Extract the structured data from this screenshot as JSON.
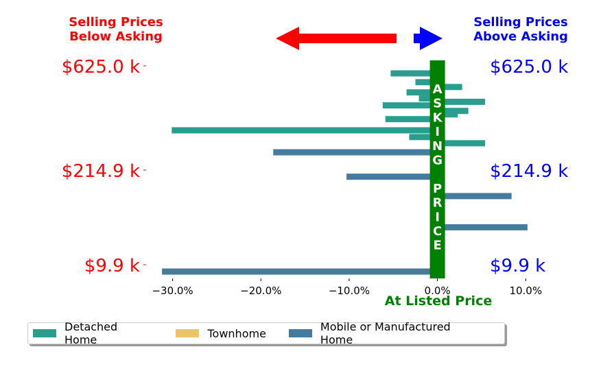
{
  "header": {
    "below_label": "Selling Prices\nBelow Asking",
    "above_label": "Selling Prices\nAbove Asking",
    "below_color": "#ff0000",
    "above_color": "#0000ff"
  },
  "center_band": {
    "letters": [
      "A",
      "S",
      "K",
      "I",
      "N",
      "G",
      "",
      "P",
      "R",
      "I",
      "C",
      "E"
    ],
    "color": "#008000",
    "label": "At Listed Price"
  },
  "chart_data": {
    "type": "bar",
    "orientation": "horizontal",
    "xlim": [
      -33,
      12
    ],
    "x_ticks": [
      -30,
      -20,
      -10,
      0,
      10
    ],
    "x_tick_labels": [
      "−30.0%",
      "−20.0%",
      "−10.0%",
      "0.0%",
      "10.0%"
    ],
    "y_tick_labels_left": [
      "$625.0 k",
      "$214.9 k",
      "$9.9 k"
    ],
    "y_tick_labels_right": [
      "$625.0 k",
      "$214.9 k",
      "$9.9 k"
    ],
    "y_tick_values": [
      625.0,
      214.9,
      9.9
    ],
    "series": [
      {
        "name": "Detached Home",
        "color": "#2a9d8f"
      },
      {
        "name": "Townhome",
        "color": "#e9c46a"
      },
      {
        "name": "Mobile or Manufactured Home",
        "color": "#457b9d"
      }
    ],
    "bars": [
      {
        "price_k": 625.0,
        "pct": -5.3,
        "type": "Detached Home"
      },
      {
        "price_k": 520.0,
        "pct": -2.5,
        "type": "Detached Home"
      },
      {
        "price_k": 470.0,
        "pct": 2.8,
        "type": "Detached Home"
      },
      {
        "price_k": 420.0,
        "pct": -3.5,
        "type": "Detached Home"
      },
      {
        "price_k": 370.0,
        "pct": -2.1,
        "type": "Detached Home"
      },
      {
        "price_k": 345.0,
        "pct": 5.4,
        "type": "Detached Home"
      },
      {
        "price_k": 320.0,
        "pct": -6.2,
        "type": "Detached Home"
      },
      {
        "price_k": 285.0,
        "pct": 3.5,
        "type": "Detached Home"
      },
      {
        "price_k": 265.0,
        "pct": 2.3,
        "type": "Detached Home"
      },
      {
        "price_k": 240.0,
        "pct": -5.9,
        "type": "Detached Home"
      },
      {
        "price_k": 190.0,
        "pct": -30.1,
        "type": "Detached Home"
      },
      {
        "price_k": 165.0,
        "pct": -3.2,
        "type": "Detached Home"
      },
      {
        "price_k": 145.0,
        "pct": 5.4,
        "type": "Detached Home"
      },
      {
        "price_k": 120.0,
        "pct": -18.6,
        "type": "Mobile or Manufactured Home"
      },
      {
        "price_k": 72.0,
        "pct": -10.3,
        "type": "Mobile or Manufactured Home"
      },
      {
        "price_k": 48.0,
        "pct": 8.4,
        "type": "Mobile or Manufactured Home"
      },
      {
        "price_k": 25.0,
        "pct": 10.2,
        "type": "Mobile or Manufactured Home"
      },
      {
        "price_k": 9.9,
        "pct": -31.2,
        "type": "Mobile or Manufactured Home"
      }
    ]
  }
}
